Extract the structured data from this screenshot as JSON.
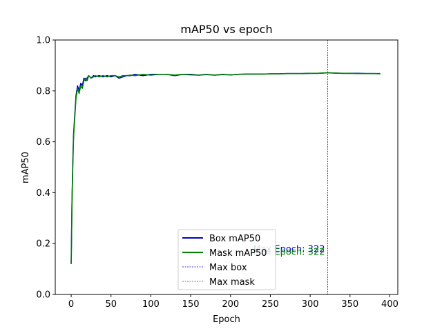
{
  "chart_data": {
    "type": "line",
    "title": "mAP50 vs epoch",
    "xlabel": "Epoch",
    "ylabel": "mAP50",
    "xlim": [
      -20,
      410
    ],
    "ylim": [
      0.0,
      1.0
    ],
    "xticks": [
      0,
      50,
      100,
      150,
      200,
      250,
      300,
      350,
      400
    ],
    "yticks": [
      0.0,
      0.2,
      0.4,
      0.6,
      0.8,
      1.0
    ],
    "xtick_labels": [
      "0",
      "50",
      "100",
      "150",
      "200",
      "250",
      "300",
      "350",
      "400"
    ],
    "ytick_labels": [
      "0.0",
      "0.2",
      "0.4",
      "0.6",
      "0.8",
      "1.0"
    ],
    "grid": false,
    "legend_position": "bottom-center",
    "series": [
      {
        "name": "Box mAP50",
        "color": "#0000cc",
        "x": [
          0,
          1,
          2,
          3,
          4,
          5,
          6,
          8,
          10,
          12,
          14,
          16,
          18,
          20,
          22,
          25,
          28,
          30,
          35,
          40,
          45,
          50,
          55,
          60,
          65,
          70,
          75,
          80,
          90,
          100,
          110,
          120,
          130,
          140,
          150,
          160,
          170,
          180,
          190,
          200,
          210,
          220,
          230,
          240,
          250,
          260,
          270,
          280,
          290,
          300,
          310,
          322,
          330,
          340,
          350,
          360,
          370,
          380,
          388
        ],
        "y": [
          0.12,
          0.36,
          0.52,
          0.63,
          0.68,
          0.73,
          0.78,
          0.82,
          0.8,
          0.83,
          0.82,
          0.85,
          0.84,
          0.85,
          0.86,
          0.85,
          0.86,
          0.855,
          0.86,
          0.855,
          0.86,
          0.855,
          0.86,
          0.85,
          0.855,
          0.86,
          0.86,
          0.865,
          0.86,
          0.865,
          0.865,
          0.865,
          0.86,
          0.865,
          0.865,
          0.862,
          0.865,
          0.862,
          0.865,
          0.863,
          0.865,
          0.866,
          0.866,
          0.866,
          0.867,
          0.867,
          0.868,
          0.868,
          0.868,
          0.869,
          0.869,
          0.871,
          0.87,
          0.869,
          0.869,
          0.869,
          0.868,
          0.868,
          0.868
        ]
      },
      {
        "name": "Mask mAP50",
        "color": "#008000",
        "x": [
          0,
          1,
          2,
          3,
          4,
          5,
          6,
          8,
          10,
          12,
          14,
          16,
          18,
          20,
          22,
          25,
          28,
          30,
          35,
          40,
          45,
          50,
          55,
          60,
          65,
          70,
          75,
          80,
          90,
          100,
          110,
          120,
          130,
          140,
          150,
          160,
          170,
          180,
          190,
          200,
          210,
          220,
          230,
          240,
          250,
          260,
          270,
          280,
          290,
          300,
          310,
          322,
          330,
          340,
          350,
          360,
          370,
          380,
          388
        ],
        "y": [
          0.12,
          0.35,
          0.5,
          0.62,
          0.67,
          0.72,
          0.77,
          0.81,
          0.79,
          0.82,
          0.81,
          0.84,
          0.85,
          0.84,
          0.86,
          0.85,
          0.855,
          0.86,
          0.855,
          0.86,
          0.855,
          0.86,
          0.86,
          0.855,
          0.86,
          0.86,
          0.862,
          0.86,
          0.865,
          0.862,
          0.865,
          0.865,
          0.862,
          0.865,
          0.863,
          0.862,
          0.864,
          0.862,
          0.864,
          0.863,
          0.865,
          0.866,
          0.866,
          0.866,
          0.867,
          0.867,
          0.868,
          0.868,
          0.868,
          0.869,
          0.869,
          0.871,
          0.87,
          0.869,
          0.869,
          0.868,
          0.868,
          0.868,
          0.867
        ]
      }
    ],
    "vlines": [
      {
        "name": "Max box",
        "x": 322,
        "color": "#0000cc",
        "style": "dashed"
      },
      {
        "name": "Max mask",
        "x": 322,
        "color": "#008000",
        "style": "dashed"
      }
    ],
    "annotations": [
      {
        "text": "Max Epoch: 322",
        "x": 322,
        "y": 0.18,
        "color": "#0000cc"
      },
      {
        "text": "Max Epoch: 322",
        "x": 322,
        "y": 0.17,
        "color": "#008000"
      }
    ],
    "legend": [
      {
        "label": "Box mAP50",
        "color": "#0000cc",
        "style": "solid"
      },
      {
        "label": "Mask mAP50",
        "color": "#008000",
        "style": "solid"
      },
      {
        "label": "Max box",
        "color": "#0000cc",
        "style": "dashed"
      },
      {
        "label": "Max mask",
        "color": "#008000",
        "style": "dashed"
      }
    ]
  }
}
